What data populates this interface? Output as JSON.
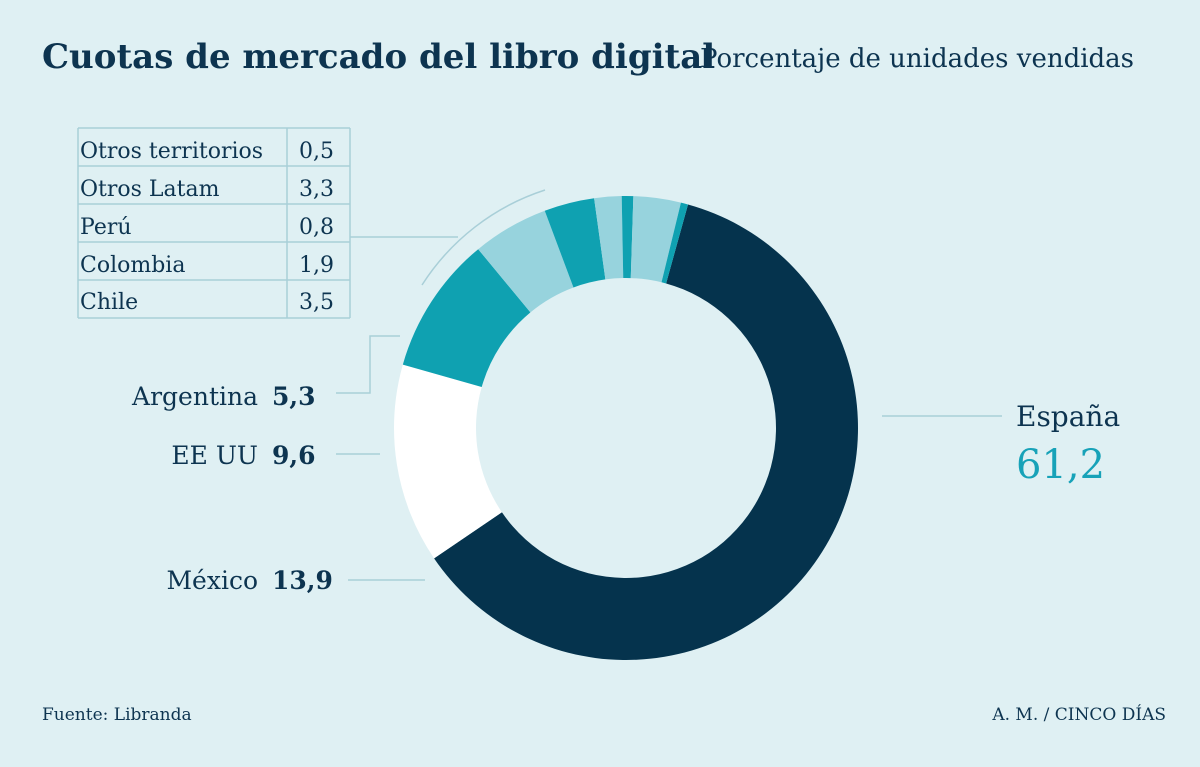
{
  "chart_data": {
    "type": "pie",
    "title": "Cuotas de mercado del libro digital",
    "subtitle": "Porcentaje de unidades vendidas",
    "slices": [
      {
        "name": "España",
        "value": 61.2,
        "value_label": "61,2",
        "color": "#05334d"
      },
      {
        "name": "México",
        "value": 13.9,
        "value_label": "13,9",
        "color": "#ffffff"
      },
      {
        "name": "EE UU",
        "value": 9.6,
        "value_label": "9,6",
        "color": "#0fa1b1"
      },
      {
        "name": "Argentina",
        "value": 5.3,
        "value_label": "5,3",
        "color": "#97d3dd"
      },
      {
        "name": "Chile",
        "value": 3.5,
        "value_label": "3,5",
        "color": "#0fa1b1"
      },
      {
        "name": "Colombia",
        "value": 1.9,
        "value_label": "1,9",
        "color": "#97d3dd"
      },
      {
        "name": "Perú",
        "value": 0.8,
        "value_label": "0,8",
        "color": "#0fa1b1"
      },
      {
        "name": "Otros Latam",
        "value": 3.3,
        "value_label": "3,3",
        "color": "#97d3dd"
      },
      {
        "name": "Otros territorios",
        "value": 0.5,
        "value_label": "0,5",
        "color": "#0fa1b1"
      }
    ],
    "table_rows": [
      {
        "name": "Otros territorios",
        "value_label": "0,5"
      },
      {
        "name": "Otros Latam",
        "value_label": "3,3"
      },
      {
        "name": "Perú",
        "value_label": "0,8"
      },
      {
        "name": "Colombia",
        "value_label": "1,9"
      },
      {
        "name": "Chile",
        "value_label": "3,5"
      }
    ]
  },
  "footer": {
    "source": "Fuente: Libranda",
    "credit": "A. M. / CINCO DÍAS"
  }
}
